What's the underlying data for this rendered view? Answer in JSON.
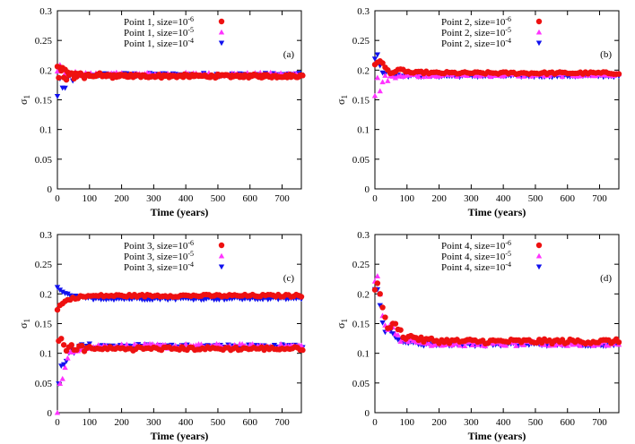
{
  "chart_data": [
    {
      "type": "scatter",
      "panel_label": "(a)",
      "xlabel": "Time (years)",
      "ylabel_main": "σ",
      "ylabel_sub": "1",
      "xlim": [
        0,
        760
      ],
      "ylim": [
        0,
        0.3
      ],
      "xticks": [
        0,
        100,
        200,
        300,
        400,
        500,
        600,
        700
      ],
      "yticks": [
        0,
        0.05,
        0.1,
        0.15,
        0.2,
        0.25,
        0.3
      ],
      "legend_position": "top-center",
      "series": [
        {
          "name": "Point 1, size=10",
          "exp": "-6",
          "color": "#ee1111",
          "marker": "circle",
          "trend": {
            "start": 0.205,
            "end": 0.19,
            "amp": 0.006,
            "tau": 40,
            "osc": 60,
            "jitter": 0.002,
            "secondary": 0.19
          }
        },
        {
          "name": "Point 1, size=10",
          "exp": "-5",
          "color": "#ff33ff",
          "marker": "triangle-up",
          "trend": {
            "start": 0.2,
            "end": 0.193,
            "amp": 0.015,
            "tau": 25,
            "osc": 40,
            "jitter": 0.003
          }
        },
        {
          "name": "Point 1, size=10",
          "exp": "-4",
          "color": "#1111ee",
          "marker": "triangle-down",
          "trend": {
            "start": 0.155,
            "end": 0.192,
            "amp": 0.03,
            "tau": 25,
            "osc": 30,
            "jitter": 0.003
          }
        }
      ]
    },
    {
      "type": "scatter",
      "panel_label": "(b)",
      "xlabel": "Time (years)",
      "ylabel_main": "σ",
      "ylabel_sub": "1",
      "xlim": [
        0,
        760
      ],
      "ylim": [
        0,
        0.3
      ],
      "xticks": [
        0,
        100,
        200,
        300,
        400,
        500,
        600,
        700
      ],
      "yticks": [
        0,
        0.05,
        0.1,
        0.15,
        0.2,
        0.25,
        0.3
      ],
      "legend_position": "top-center",
      "series": [
        {
          "name": "Point 2, size=10",
          "exp": "-6",
          "color": "#ee1111",
          "marker": "circle",
          "trend": {
            "start": 0.21,
            "end": 0.195,
            "amp": 0.012,
            "tau": 50,
            "osc": 70,
            "jitter": 0.002
          }
        },
        {
          "name": "Point 2, size=10",
          "exp": "-5",
          "color": "#ff33ff",
          "marker": "triangle-up",
          "trend": {
            "start": 0.155,
            "end": 0.192,
            "amp": 0.03,
            "tau": 20,
            "osc": 25,
            "jitter": 0.003
          }
        },
        {
          "name": "Point 2, size=10",
          "exp": "-4",
          "color": "#1111ee",
          "marker": "triangle-down",
          "trend": {
            "start": 0.22,
            "end": 0.19,
            "amp": 0.02,
            "tau": 25,
            "osc": 35,
            "jitter": 0.002
          }
        }
      ]
    },
    {
      "type": "scatter",
      "panel_label": "(c)",
      "xlabel": "Time (years)",
      "ylabel_main": "σ",
      "ylabel_sub": "1",
      "xlim": [
        0,
        760
      ],
      "ylim": [
        0,
        0.3
      ],
      "xticks": [
        0,
        100,
        200,
        300,
        400,
        500,
        600,
        700
      ],
      "yticks": [
        0,
        0.05,
        0.1,
        0.15,
        0.2,
        0.25,
        0.3
      ],
      "legend_position": "top-center",
      "series": [
        {
          "name": "Point 3, size=10",
          "exp": "-6",
          "color": "#ee1111",
          "marker": "circle",
          "trend": {
            "start": 0.175,
            "end": 0.197,
            "amp": 0.0,
            "tau": 30,
            "osc": 60,
            "jitter": 0.002,
            "secondary": 0.108,
            "secondary_start": 0.12
          }
        },
        {
          "name": "Point 3, size=10",
          "exp": "-5",
          "color": "#ff33ff",
          "marker": "triangle-up",
          "trend": {
            "start": 0.0,
            "end": 0.112,
            "amp": 0.015,
            "tau": 20,
            "osc": 30,
            "jitter": 0.004
          }
        },
        {
          "name": "Point 3, size=10",
          "exp": "-4",
          "color": "#1111ee",
          "marker": "triangle-down",
          "trend": {
            "start": 0.21,
            "end": 0.192,
            "amp": 0.0,
            "tau": 30,
            "osc": 60,
            "jitter": 0.002,
            "secondary": 0.112,
            "secondary_start": 0.05
          }
        }
      ]
    },
    {
      "type": "scatter",
      "panel_label": "(d)",
      "xlabel": "Time (years)",
      "ylabel_main": "σ",
      "ylabel_sub": "1",
      "xlim": [
        0,
        760
      ],
      "ylim": [
        0,
        0.3
      ],
      "xticks": [
        0,
        100,
        200,
        300,
        400,
        500,
        600,
        700
      ],
      "yticks": [
        0,
        0.05,
        0.1,
        0.15,
        0.2,
        0.25,
        0.3
      ],
      "legend_position": "top-center",
      "series": [
        {
          "name": "Point 4, size=10",
          "exp": "-6",
          "color": "#ee1111",
          "marker": "circle",
          "trend": {
            "start": 0.21,
            "end": 0.12,
            "amp": 0.03,
            "tau": 45,
            "osc": 55,
            "jitter": 0.004
          }
        },
        {
          "name": "Point 4, size=10",
          "exp": "-5",
          "color": "#ff33ff",
          "marker": "triangle-up",
          "trend": {
            "start": 0.225,
            "end": 0.116,
            "amp": 0.035,
            "tau": 35,
            "osc": 45,
            "jitter": 0.004
          }
        },
        {
          "name": "Point 4, size=10",
          "exp": "-4",
          "color": "#1111ee",
          "marker": "triangle-down",
          "trend": {
            "start": 0.21,
            "end": 0.115,
            "amp": 0.03,
            "tau": 30,
            "osc": 40,
            "jitter": 0.003
          }
        }
      ]
    }
  ]
}
